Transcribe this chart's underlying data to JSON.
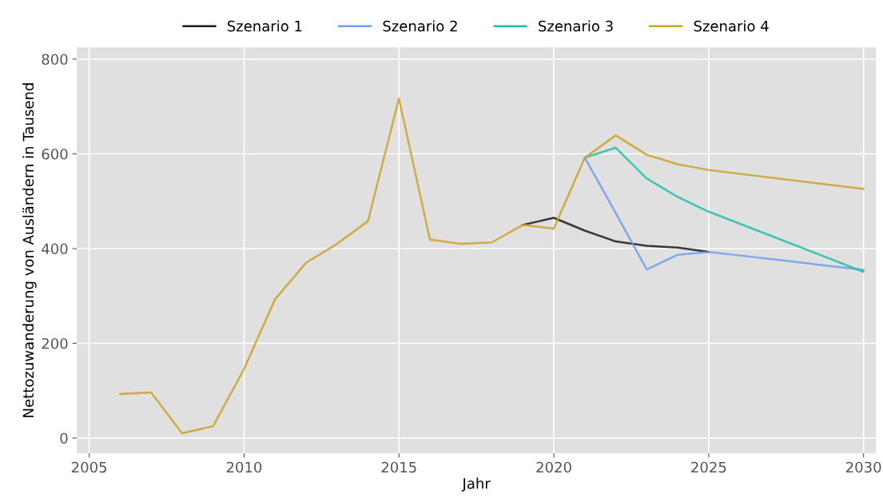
{
  "chart_data": {
    "type": "line",
    "xlabel": "Jahr",
    "ylabel": "Nettozuwanderung von Ausländern in Tausend",
    "x": [
      2006,
      2007,
      2008,
      2009,
      2010,
      2011,
      2012,
      2013,
      2014,
      2015,
      2016,
      2017,
      2018,
      2019,
      2020,
      2021,
      2022,
      2023,
      2024,
      2025,
      2030
    ],
    "series": [
      {
        "name": "Szenario 1",
        "color": "#1a1a1a",
        "values": [
          null,
          null,
          null,
          null,
          null,
          null,
          null,
          null,
          null,
          null,
          null,
          null,
          null,
          450,
          465,
          438,
          415,
          406,
          402,
          393,
          null
        ]
      },
      {
        "name": "Szenario 2",
        "color": "#6f9ef0",
        "values": [
          null,
          null,
          null,
          null,
          null,
          null,
          null,
          null,
          null,
          null,
          null,
          null,
          null,
          null,
          null,
          592,
          475,
          356,
          387,
          393,
          355
        ]
      },
      {
        "name": "Szenario 3",
        "color": "#20c0a8",
        "values": [
          null,
          null,
          null,
          null,
          null,
          null,
          null,
          null,
          null,
          null,
          null,
          null,
          null,
          null,
          null,
          592,
          613,
          548,
          509,
          478,
          351
        ]
      },
      {
        "name": "Szenario 4",
        "color": "#c9a227",
        "values": [
          93,
          96,
          10,
          25,
          146,
          293,
          370,
          410,
          458,
          717,
          419,
          410,
          413,
          450,
          442,
          592,
          639,
          598,
          578,
          566,
          526
        ]
      }
    ],
    "xlim": [
      2004.6,
      2030.4
    ],
    "xticks": [
      2005,
      2010,
      2015,
      2020,
      2025,
      2030
    ],
    "ylim": [
      -32,
      825
    ],
    "yticks": [
      0,
      200,
      400,
      600,
      800
    ],
    "grid": true,
    "legend": "top",
    "marker": "none",
    "line_style": "solid"
  }
}
